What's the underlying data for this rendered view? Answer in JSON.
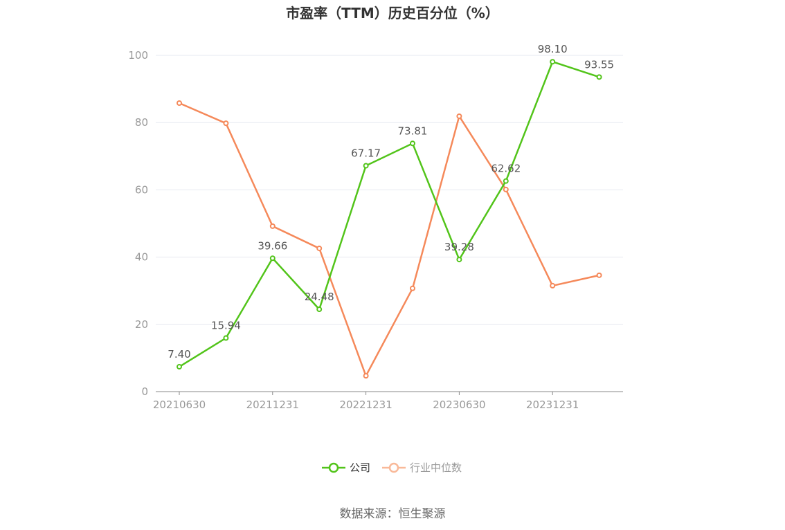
{
  "chart_data": {
    "type": "line",
    "title": "市盈率（TTM）历史百分位（%）",
    "categories": [
      "20210630",
      "",
      "20211231",
      "",
      "20221231",
      "",
      "20230630",
      "",
      "20231231",
      ""
    ],
    "ylim": [
      0,
      100
    ],
    "yticks": [
      0,
      20,
      40,
      60,
      80,
      100
    ],
    "grid": true,
    "legend_position": "bottom",
    "series": [
      {
        "name": "公司",
        "color": "#52c41a",
        "values": [
          7.4,
          15.94,
          39.66,
          24.48,
          67.17,
          73.81,
          39.28,
          62.62,
          98.1,
          93.55
        ],
        "labels": [
          "7.40",
          "15.94",
          "39.66",
          "24.48",
          "67.17",
          "73.81",
          "39.28",
          "62.62",
          "98.10",
          "93.55"
        ]
      },
      {
        "name": "行业中位数",
        "color": "#f5895a",
        "values": [
          85.8,
          79.8,
          49.2,
          42.6,
          4.7,
          30.7,
          81.9,
          60.1,
          31.5,
          34.6
        ]
      }
    ],
    "source": "数据来源：恒生聚源"
  }
}
